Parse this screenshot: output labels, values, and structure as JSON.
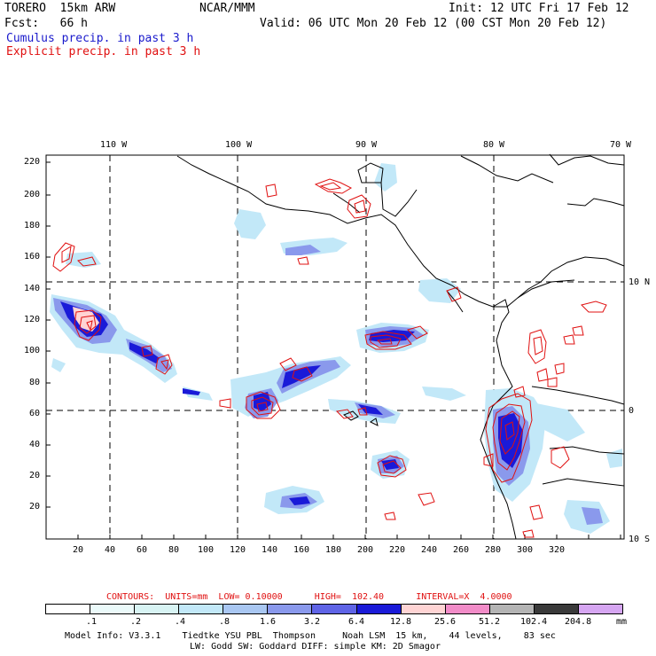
{
  "header": {
    "model_line": "TORERO  15km ARW",
    "org": "NCAR/MMM",
    "init": "Init: 12 UTC Fri 17 Feb 12",
    "fcst": "Fcst:   66 h",
    "valid": "Valid: 06 UTC Mon 20 Feb 12 (00 CST Mon 20 Feb 12)",
    "cumulus_label": "Cumulus precip. in past 3 h",
    "explicit_label": "Explicit precip. in past 3 h"
  },
  "colors": {
    "cumulus": "#1a1acc",
    "explicit": "#e01010",
    "coast": "#000000"
  },
  "map": {
    "lon_labels": [
      "110 W",
      "100 W",
      "90 W",
      "80 W",
      "70 W"
    ],
    "lat_labels": [
      "10 N",
      "0",
      "10 S"
    ],
    "y_ticks": [
      "220",
      "200",
      "180",
      "160",
      "140",
      "120",
      "100",
      "80",
      "60",
      "40",
      "20"
    ],
    "x_ticks": [
      "20",
      "40",
      "60",
      "80",
      "100",
      "120",
      "140",
      "160",
      "180",
      "200",
      "220",
      "240",
      "260",
      "280",
      "300",
      "320"
    ]
  },
  "contours": {
    "text": "CONTOURS:  UNITS=mm  LOW= 0.10000      HIGH=  102.40      INTERVAL=X  4.0000"
  },
  "legend": {
    "colors": [
      "#ffffff",
      "#ebfafa",
      "#d8f4f4",
      "#c2e8f8",
      "#a9c7f2",
      "#8a99ec",
      "#5f64e6",
      "#1a1ad8",
      "#ffd4d4",
      "#f28cc8",
      "#b4b4b4",
      "#3a3a3a",
      "#d6a6f2"
    ],
    "labels": [
      ".1",
      ".2",
      ".4",
      ".8",
      "1.6",
      "3.2",
      "6.4",
      "12.8",
      "25.6",
      "51.2",
      "102.4",
      "204.8"
    ],
    "unit": "mm"
  },
  "footer": {
    "line1": "Model Info: V3.3.1    Tiedtke YSU PBL  Thompson     Noah LSM  15 km,    44 levels,    83 sec",
    "line2": "LW: Godd SW: Goddard DIFF: simple KM: 2D Smagor"
  }
}
